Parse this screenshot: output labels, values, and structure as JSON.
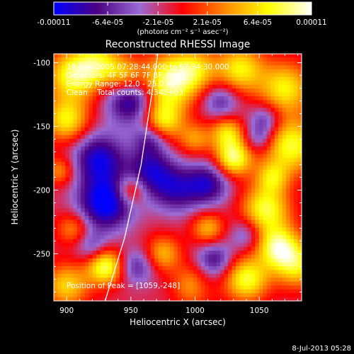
{
  "chart_data": {
    "type": "heatmap",
    "title": "Reconstructed RHESSI Image",
    "xlabel": "Heliocentric X (arcsec)",
    "ylabel": "Heliocentric Y (arcsec)",
    "xlim": [
      890,
      1083
    ],
    "ylim": [
      -287,
      -93
    ],
    "x_ticks": [
      900,
      950,
      1000,
      1050
    ],
    "y_ticks": [
      -100,
      -150,
      -200,
      -250
    ],
    "x_tick_labels": [
      "900",
      "950",
      "1000",
      "1050"
    ],
    "y_tick_labels": [
      "-100",
      "-150",
      "-200",
      "-250"
    ],
    "colorbar": {
      "range": [
        -0.00011,
        0.00011
      ],
      "ticks": [
        -0.00011,
        -6.4e-05,
        -2.1e-05,
        2.1e-05,
        6.4e-05,
        0.00011
      ],
      "tick_labels": [
        "-0.00011",
        "-6.4e-05",
        "-2.1e-05",
        "2.1e-05",
        "6.4e-05",
        "0.00011"
      ],
      "units": "(photons cm⁻² s⁻¹ asec⁻²)",
      "colors": [
        "#0000ff",
        "#4b0082",
        "#9a6bd4",
        "#ff0000",
        "#ff8c00",
        "#ffff00",
        "#ffffff"
      ]
    },
    "annotations": [
      "18-Dec-2005 07:28:44.000 to 07:34:30.000",
      "Detectors: 4F 5F 6F 7F 8F, Att 0",
      "Energy Range: 12.0 - 25.0 keV",
      "Clean    Total counts: 4.34E+03"
    ],
    "peak_label": "Position of Peak = [1059,-248]",
    "peak": [
      1059,
      -248
    ],
    "limb_curve": [
      [
        930,
        -287
      ],
      [
        945,
        -238
      ],
      [
        958,
        -180
      ],
      [
        971,
        -93
      ]
    ],
    "blobs": [
      {
        "x": 905,
        "y": -110,
        "v": 0.9,
        "s": 14
      },
      {
        "x": 925,
        "y": -100,
        "v": 0.7,
        "s": 12
      },
      {
        "x": 900,
        "y": -145,
        "v": 0.8,
        "s": 12
      },
      {
        "x": 945,
        "y": -110,
        "v": 0.6,
        "s": 10
      },
      {
        "x": 980,
        "y": -115,
        "v": 1.0,
        "s": 15
      },
      {
        "x": 975,
        "y": -145,
        "v": 0.8,
        "s": 11
      },
      {
        "x": 1000,
        "y": -105,
        "v": 0.6,
        "s": 12
      },
      {
        "x": 1035,
        "y": -105,
        "v": 0.8,
        "s": 13
      },
      {
        "x": 1070,
        "y": -120,
        "v": 0.8,
        "s": 14
      },
      {
        "x": 1075,
        "y": -165,
        "v": 0.9,
        "s": 15
      },
      {
        "x": 1030,
        "y": -175,
        "v": 1.0,
        "s": 10
      },
      {
        "x": 1025,
        "y": -155,
        "v": 0.7,
        "s": 9
      },
      {
        "x": 1000,
        "y": -160,
        "v": 0.5,
        "s": 9
      },
      {
        "x": 895,
        "y": -185,
        "v": 0.5,
        "s": 8
      },
      {
        "x": 950,
        "y": -200,
        "v": 0.6,
        "s": 8
      },
      {
        "x": 1055,
        "y": -215,
        "v": 0.9,
        "s": 13
      },
      {
        "x": 1065,
        "y": -245,
        "v": 1.0,
        "s": 12
      },
      {
        "x": 1040,
        "y": -270,
        "v": 0.9,
        "s": 12
      },
      {
        "x": 1080,
        "y": -260,
        "v": 0.7,
        "s": 12
      },
      {
        "x": 1000,
        "y": -275,
        "v": 0.7,
        "s": 11
      },
      {
        "x": 975,
        "y": -250,
        "v": 0.6,
        "s": 10
      },
      {
        "x": 1010,
        "y": -230,
        "v": 0.6,
        "s": 9
      },
      {
        "x": 900,
        "y": -275,
        "v": 0.7,
        "s": 12
      },
      {
        "x": 930,
        "y": -260,
        "v": 1.0,
        "s": 10
      },
      {
        "x": 1060,
        "y": -190,
        "v": 0.6,
        "s": 9
      },
      {
        "x": 905,
        "y": -230,
        "v": 0.5,
        "s": 9
      },
      {
        "x": 950,
        "y": -130,
        "v": -0.8,
        "s": 13
      },
      {
        "x": 925,
        "y": -175,
        "v": -0.8,
        "s": 14
      },
      {
        "x": 930,
        "y": -210,
        "v": -1.0,
        "s": 15
      },
      {
        "x": 965,
        "y": -185,
        "v": -0.7,
        "s": 13
      },
      {
        "x": 985,
        "y": -200,
        "v": -0.6,
        "s": 13
      },
      {
        "x": 1010,
        "y": -195,
        "v": -0.7,
        "s": 12
      },
      {
        "x": 1020,
        "y": -130,
        "v": -0.5,
        "s": 10
      },
      {
        "x": 1055,
        "y": -145,
        "v": -0.5,
        "s": 9
      },
      {
        "x": 1040,
        "y": -235,
        "v": -0.4,
        "s": 9
      },
      {
        "x": 1015,
        "y": -255,
        "v": -0.6,
        "s": 10
      },
      {
        "x": 955,
        "y": -260,
        "v": -0.5,
        "s": 10
      },
      {
        "x": 920,
        "y": -245,
        "v": -0.4,
        "s": 9
      },
      {
        "x": 965,
        "y": -160,
        "v": -0.5,
        "s": 9
      },
      {
        "x": 1050,
        "y": -160,
        "v": -0.4,
        "s": 8
      },
      {
        "x": 1005,
        "y": -275,
        "v": -0.3,
        "s": 9
      }
    ]
  },
  "footer": {
    "date": "8-Jul-2013 05:28"
  }
}
